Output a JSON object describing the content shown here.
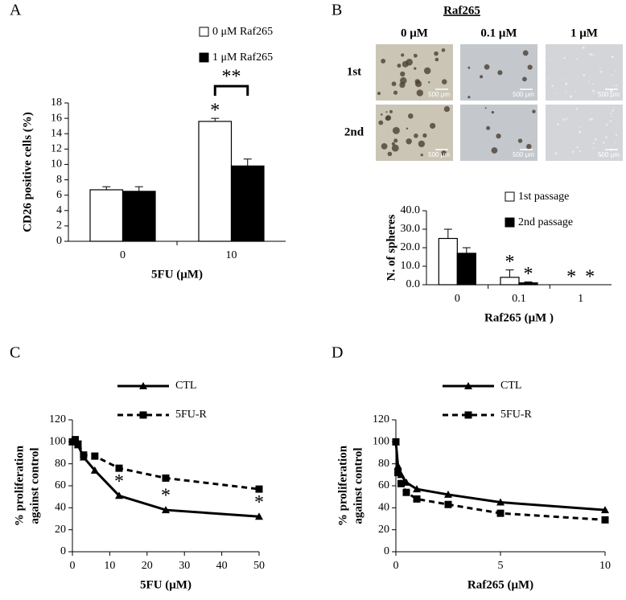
{
  "panel_labels": [
    "A",
    "B",
    "C",
    "D"
  ],
  "image_grid": {
    "title": "Raf265",
    "columns": [
      "0 μM",
      "0.1 μM",
      "1 μM"
    ],
    "rows": [
      "1st",
      "2nd"
    ],
    "scale_labels": [
      [
        "500 μm",
        "500 μm",
        "500 μm"
      ],
      [
        "500 μm",
        "500 μm",
        "500 μm"
      ]
    ]
  },
  "chart_data": [
    {
      "type": "bar",
      "y_label": "CD26 positive cells (%)",
      "x_label": "5FU (μM)",
      "categories": [
        "0",
        "10"
      ],
      "series": [
        {
          "name": "0 μM Raf265",
          "color": "#ffffff",
          "values": [
            6.7,
            15.6
          ],
          "errors": [
            0.4,
            0.4
          ]
        },
        {
          "name": "1 μM Raf265",
          "color": "#000000",
          "values": [
            6.5,
            9.8
          ],
          "errors": [
            0.6,
            0.9
          ]
        }
      ],
      "ylim": [
        0,
        18
      ],
      "yticks": [
        0,
        2,
        4,
        6,
        8,
        10,
        12,
        14,
        16,
        18
      ],
      "annotations": [
        {
          "text": "*",
          "category": "10",
          "series": "0 μM Raf265"
        },
        {
          "text": "**",
          "category": "10"
        }
      ]
    },
    {
      "type": "bar",
      "y_label": "N. of spheres",
      "x_label": "Raf265 (μM )",
      "categories": [
        "0",
        "0.1",
        "1"
      ],
      "series": [
        {
          "name": "1st passage",
          "color": "#ffffff",
          "values": [
            25,
            4,
            0
          ],
          "errors": [
            5,
            4,
            0
          ]
        },
        {
          "name": "2nd passage",
          "color": "#000000",
          "values": [
            17,
            1,
            0
          ],
          "errors": [
            3,
            0.5,
            0
          ]
        }
      ],
      "ylim": [
        0,
        40
      ],
      "yticks": [
        {
          "value": 0,
          "label": "0.0"
        },
        {
          "value": 10,
          "label": "10.0"
        },
        {
          "value": 20,
          "label": "20.0"
        },
        {
          "value": 30,
          "label": "30.0"
        },
        {
          "value": 40,
          "label": "40.0"
        }
      ],
      "annotations": [
        {
          "text": "*",
          "category": "0.1",
          "series": "1st passage"
        },
        {
          "text": "*",
          "category": "0.1",
          "series": "2nd passage"
        },
        {
          "text": "*",
          "category": "1",
          "series": "1st passage"
        },
        {
          "text": "*",
          "category": "1",
          "series": "2nd passage"
        }
      ]
    },
    {
      "type": "line",
      "y_label": [
        "% proliferation",
        "against control"
      ],
      "x_label": "5FU (μM)",
      "x": [
        0,
        0.75,
        1.5,
        3,
        6,
        12.5,
        25,
        50
      ],
      "series": [
        {
          "name": "CTL",
          "color": "#000000",
          "marker": "triangle",
          "dashed": false,
          "values": [
            100,
            100,
            97,
            86,
            74,
            51,
            38,
            32
          ]
        },
        {
          "name": "5FU-R",
          "color": "#000000",
          "marker": "square",
          "dashed": true,
          "values": [
            100,
            102,
            98,
            88,
            87,
            76,
            67,
            57
          ]
        }
      ],
      "xlim": [
        0,
        50
      ],
      "xticks": [
        0,
        10,
        20,
        30,
        40,
        50
      ],
      "ylim": [
        0,
        120
      ],
      "yticks": [
        0,
        20,
        40,
        60,
        80,
        100,
        120
      ],
      "annotations": [
        {
          "text": "*",
          "x": 12.5,
          "series": "CTL"
        },
        {
          "text": "*",
          "x": 25,
          "series": "CTL"
        },
        {
          "text": "*",
          "x": 50,
          "series": "CTL"
        }
      ]
    },
    {
      "type": "line",
      "y_label": [
        "% proliferation",
        "against control"
      ],
      "x_label": "Raf265 (μM)",
      "x": [
        0,
        0.1,
        0.25,
        0.5,
        1,
        2.5,
        5,
        10
      ],
      "series": [
        {
          "name": "CTL",
          "color": "#000000",
          "marker": "triangle",
          "dashed": false,
          "values": [
            100,
            78,
            70,
            63,
            57,
            52,
            45,
            38
          ]
        },
        {
          "name": "5FU-R",
          "color": "#000000",
          "marker": "square",
          "dashed": true,
          "values": [
            100,
            72,
            62,
            54,
            48,
            43,
            35,
            29
          ]
        }
      ],
      "xlim": [
        0,
        10
      ],
      "xticks": [
        0,
        5,
        10
      ],
      "ylim": [
        0,
        120
      ],
      "yticks": [
        0,
        20,
        40,
        60,
        80,
        100,
        120
      ],
      "annotations": []
    }
  ]
}
